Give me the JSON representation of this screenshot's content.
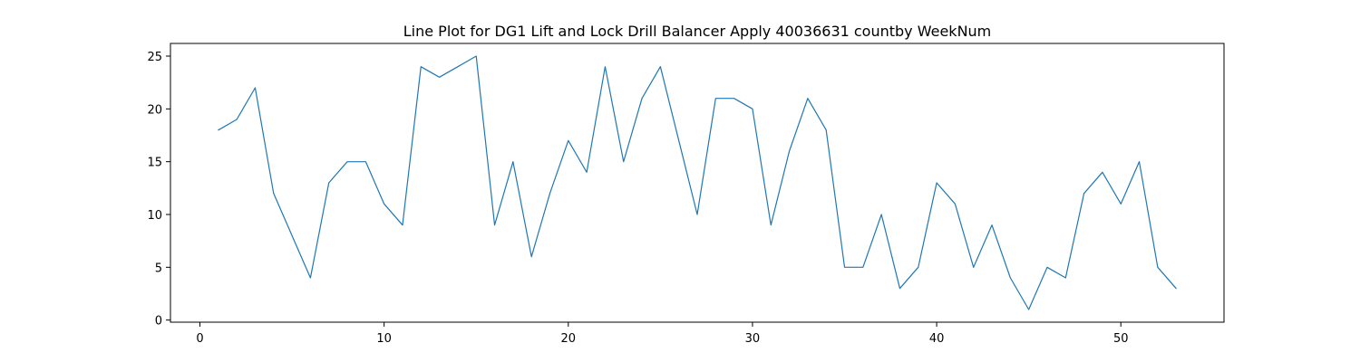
{
  "chart_data": {
    "type": "line",
    "title": "Line Plot for DG1 Lift and Lock Drill Balancer Apply 40036631 countby WeekNum",
    "xlabel": "",
    "ylabel": "",
    "xlim": [
      -1.6,
      55.6
    ],
    "ylim": [
      -0.2,
      26.2
    ],
    "xticks": [
      0,
      10,
      20,
      30,
      40,
      50
    ],
    "yticks": [
      0,
      5,
      10,
      15,
      20,
      25
    ],
    "grid": false,
    "legend": "none",
    "x": [
      1,
      2,
      3,
      4,
      5,
      6,
      7,
      8,
      9,
      10,
      11,
      12,
      13,
      14,
      15,
      16,
      17,
      18,
      19,
      20,
      21,
      22,
      23,
      24,
      25,
      26,
      27,
      28,
      29,
      30,
      31,
      32,
      33,
      34,
      35,
      36,
      37,
      38,
      39,
      40,
      41,
      42,
      43,
      44,
      45,
      46,
      47,
      48,
      49,
      50,
      51,
      52,
      53
    ],
    "series": [
      {
        "color": "#1f77b4",
        "values": [
          18,
          19,
          22,
          12,
          8,
          4,
          13,
          15,
          15,
          11,
          9,
          24,
          23,
          24,
          25,
          9,
          15,
          6,
          12,
          17,
          14,
          24,
          15,
          21,
          24,
          17,
          10,
          21,
          21,
          20,
          9,
          16,
          21,
          18,
          5,
          5,
          10,
          3,
          5,
          13,
          11,
          5,
          9,
          4,
          1,
          5,
          4,
          12,
          14,
          11,
          15,
          5,
          3
        ]
      }
    ]
  }
}
